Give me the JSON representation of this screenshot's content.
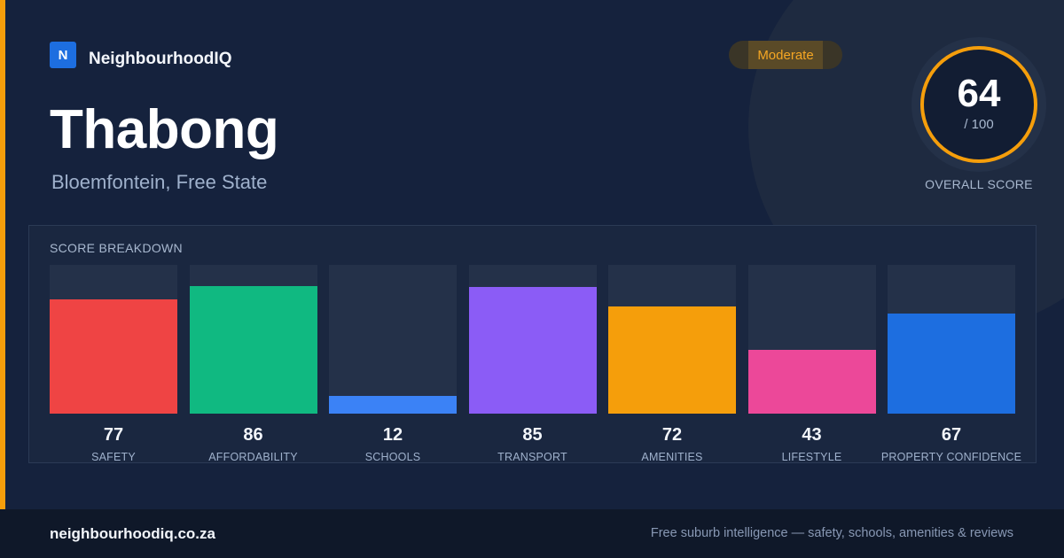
{
  "brand": {
    "logo_letter": "N",
    "name": "NeighbourhoodIQ"
  },
  "suburb": {
    "name": "Thabong",
    "location": "Bloemfontein, Free State"
  },
  "rating_badge": {
    "label": "Moderate",
    "color": "#f5a623"
  },
  "overall": {
    "score": "64",
    "max_label": "/ 100",
    "caption": "OVERALL SCORE",
    "ring_color": "#f59e0b"
  },
  "breakdown": {
    "title": "SCORE BREAKDOWN",
    "max": 100,
    "items": [
      {
        "label": "SAFETY",
        "value": 77,
        "display": "77",
        "color": "#ef4444"
      },
      {
        "label": "AFFORDABILITY",
        "value": 86,
        "display": "86",
        "color": "#10b981"
      },
      {
        "label": "SCHOOLS",
        "value": 12,
        "display": "12",
        "color": "#3b82f6"
      },
      {
        "label": "TRANSPORT",
        "value": 85,
        "display": "85",
        "color": "#8b5cf6"
      },
      {
        "label": "AMENITIES",
        "value": 72,
        "display": "72",
        "color": "#f59e0b"
      },
      {
        "label": "LIFESTYLE",
        "value": 43,
        "display": "43",
        "color": "#ec4899"
      },
      {
        "label": "PROPERTY CONFIDENCE",
        "value": 67,
        "display": "67",
        "color": "#1d6ee0"
      }
    ]
  },
  "footer": {
    "url": "neighbourhoodiq.co.za",
    "tagline": "Free suburb intelligence — safety, schools, amenities & reviews"
  }
}
